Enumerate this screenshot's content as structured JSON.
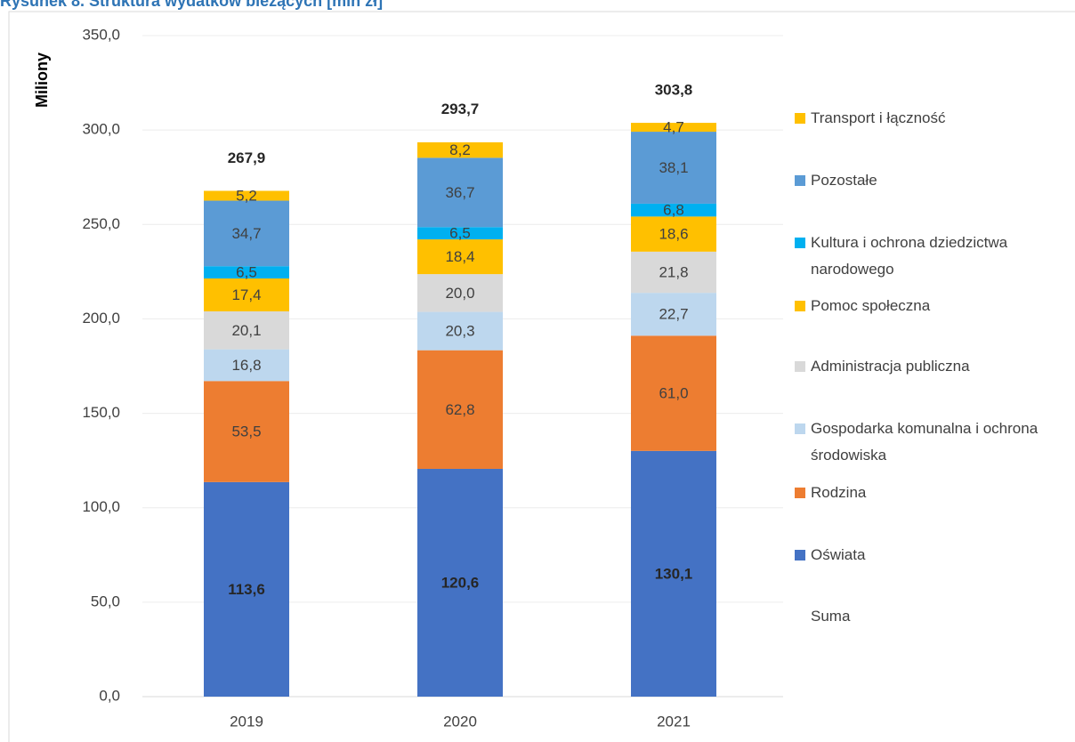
{
  "chart_data": {
    "type": "bar",
    "stacked": true,
    "title": "Rysunek 8. Struktura wydatków bieżących [mln zł]",
    "y_label": "Miliony",
    "categories": [
      "2019",
      "2020",
      "2021"
    ],
    "ylim": [
      0,
      350
    ],
    "yticks": [
      {
        "value": 0,
        "label": "0,0"
      },
      {
        "value": 50,
        "label": "50,0"
      },
      {
        "value": 100,
        "label": "100,0"
      },
      {
        "value": 150,
        "label": "150,0"
      },
      {
        "value": 200,
        "label": "200,0"
      },
      {
        "value": 250,
        "label": "250,0"
      },
      {
        "value": 300,
        "label": "300,0"
      },
      {
        "value": 350,
        "label": "350,0"
      }
    ],
    "series": [
      {
        "name": "Oświata",
        "color": "#4472c4",
        "values": [
          113.6,
          120.6,
          130.1
        ],
        "value_labels": [
          "113,6",
          "120,6",
          "130,1"
        ]
      },
      {
        "name": "Rodzina",
        "color": "#ed7d31",
        "values": [
          53.5,
          62.8,
          61.0
        ],
        "value_labels": [
          "53,5",
          "62,8",
          "61,0"
        ]
      },
      {
        "name": "Gospodarka komunalna i ochrona środowiska",
        "color": "#bdd7ee",
        "values": [
          16.8,
          20.3,
          22.7
        ],
        "value_labels": [
          "16,8",
          "20,3",
          "22,7"
        ]
      },
      {
        "name": "Administracja publiczna",
        "color": "#d9d9d9",
        "values": [
          20.1,
          20.0,
          21.8
        ],
        "value_labels": [
          "20,1",
          "20,0",
          "21,8"
        ]
      },
      {
        "name": "Pomoc społeczna",
        "color": "#ffc000",
        "values": [
          17.4,
          18.4,
          18.6
        ],
        "value_labels": [
          "17,4",
          "18,4",
          "18,6"
        ]
      },
      {
        "name": "Kultura i ochrona dziedzictwa narodowego",
        "color": "#00b0f0",
        "values": [
          6.5,
          6.5,
          6.8
        ],
        "value_labels": [
          "6,5",
          "6,5",
          "6,8"
        ]
      },
      {
        "name": "Pozostałe",
        "color": "#5b9bd5",
        "values": [
          34.7,
          36.7,
          38.1
        ],
        "value_labels": [
          "34,7",
          "36,7",
          "38,1"
        ]
      },
      {
        "name": "Transport i łączność",
        "color": "#ffc000",
        "values": [
          5.2,
          8.2,
          4.7
        ],
        "value_labels": [
          "5,2",
          "8,2",
          "4,7"
        ]
      }
    ],
    "total": {
      "name": "Suma",
      "values": [
        267.9,
        293.7,
        303.8
      ],
      "value_labels": [
        "267,9",
        "293,7",
        "303,8"
      ]
    }
  }
}
